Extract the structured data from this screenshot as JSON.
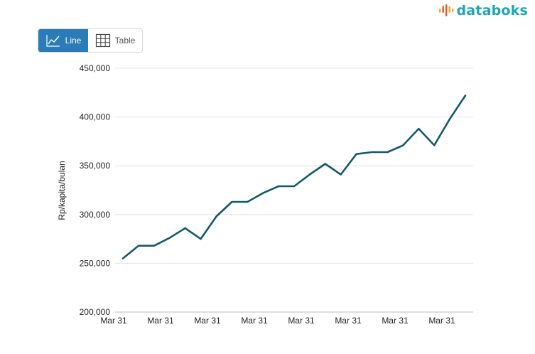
{
  "brand": {
    "name": "databoks",
    "logo_colors": [
      "#f5a623",
      "#e8542e",
      "#1aa5b8"
    ]
  },
  "view_toggle": {
    "line_label": "Line",
    "table_label": "Table",
    "active": "line",
    "active_color": "#2b7bb9"
  },
  "chart_data": {
    "type": "line",
    "title": "",
    "xlabel": "",
    "ylabel": "Rp/kapita/bulan",
    "ylim": [
      200000,
      450000
    ],
    "yticks": [
      200000,
      250000,
      300000,
      350000,
      400000,
      450000
    ],
    "ytick_labels": [
      "200,000",
      "250,000",
      "300,000",
      "350,000",
      "400,000",
      "450,000"
    ],
    "xtick_labels": [
      "Mar 31",
      "Mar 31",
      "Mar 31",
      "Mar 31",
      "Mar 31",
      "Mar 31",
      "Mar 31",
      "Mar 31"
    ],
    "grid": true,
    "line_color": "#14586e",
    "values": [
      255000,
      268000,
      268000,
      276000,
      286000,
      275000,
      298000,
      313000,
      313000,
      322000,
      329000,
      329000,
      341000,
      352000,
      341000,
      362000,
      364000,
      364000,
      371000,
      388000,
      371000,
      398000,
      422000
    ]
  }
}
